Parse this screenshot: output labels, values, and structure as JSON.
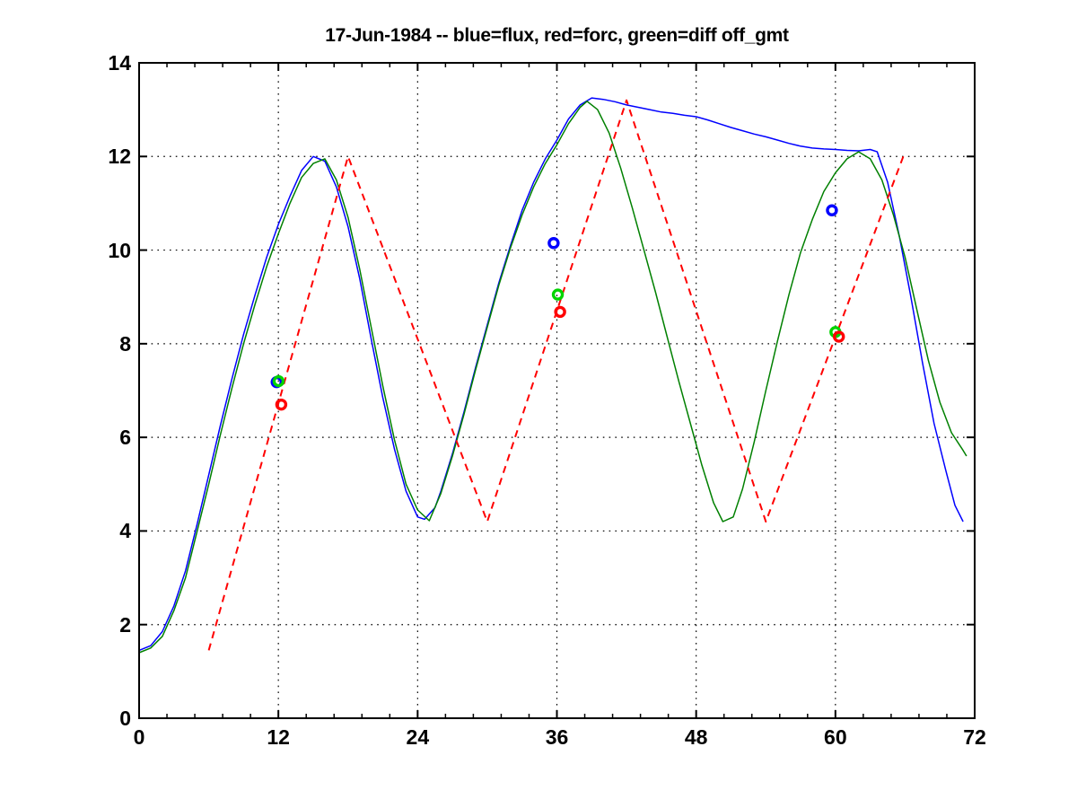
{
  "chart_data": {
    "type": "line",
    "title": "17-Jun-1984 -- blue=flux, red=forc, green=diff off_gmt",
    "xlabel": "",
    "ylabel": "",
    "xlim": [
      0,
      72
    ],
    "ylim": [
      0,
      14
    ],
    "x_ticks": [
      0,
      12,
      24,
      36,
      48,
      60,
      72
    ],
    "y_ticks": [
      0,
      2,
      4,
      6,
      8,
      10,
      12,
      14
    ],
    "x_minor_step": 2.4,
    "grid": "dotted",
    "grid_color": "#000000",
    "background": "#ffffff",
    "legend_note": "legend encoded in title: blue=flux, red=forc, green=diff",
    "series": [
      {
        "name": "flux",
        "color": "#0000ff",
        "style": "solid",
        "width": 1.5,
        "points": [
          [
            0,
            1.45
          ],
          [
            1,
            1.55
          ],
          [
            2,
            1.85
          ],
          [
            3,
            2.4
          ],
          [
            4,
            3.15
          ],
          [
            5,
            4.15
          ],
          [
            6,
            5.2
          ],
          [
            7,
            6.25
          ],
          [
            8,
            7.25
          ],
          [
            9,
            8.2
          ],
          [
            10,
            9.05
          ],
          [
            11,
            9.85
          ],
          [
            12,
            10.55
          ],
          [
            13,
            11.15
          ],
          [
            14,
            11.7
          ],
          [
            15,
            12.0
          ],
          [
            16,
            11.9
          ],
          [
            17,
            11.35
          ],
          [
            18,
            10.5
          ],
          [
            19,
            9.4
          ],
          [
            20,
            8.1
          ],
          [
            21,
            6.85
          ],
          [
            22,
            5.75
          ],
          [
            23,
            4.85
          ],
          [
            24,
            4.3
          ],
          [
            24.6,
            4.25
          ],
          [
            25.5,
            4.5
          ],
          [
            26,
            4.85
          ],
          [
            27,
            5.65
          ],
          [
            28,
            6.55
          ],
          [
            29,
            7.5
          ],
          [
            30,
            8.4
          ],
          [
            31,
            9.3
          ],
          [
            32,
            10.1
          ],
          [
            33,
            10.85
          ],
          [
            34,
            11.45
          ],
          [
            35,
            11.95
          ],
          [
            36,
            12.35
          ],
          [
            37,
            12.8
          ],
          [
            38,
            13.1
          ],
          [
            39,
            13.25
          ],
          [
            40,
            13.22
          ],
          [
            41,
            13.17
          ],
          [
            42,
            13.1
          ],
          [
            43,
            13.05
          ],
          [
            44,
            13.0
          ],
          [
            45,
            12.95
          ],
          [
            46,
            12.92
          ],
          [
            47,
            12.88
          ],
          [
            48,
            12.85
          ],
          [
            49,
            12.78
          ],
          [
            50,
            12.7
          ],
          [
            51,
            12.62
          ],
          [
            52,
            12.55
          ],
          [
            53,
            12.48
          ],
          [
            54,
            12.42
          ],
          [
            55,
            12.35
          ],
          [
            56,
            12.28
          ],
          [
            57,
            12.22
          ],
          [
            58,
            12.18
          ],
          [
            59,
            12.16
          ],
          [
            60,
            12.15
          ],
          [
            61,
            12.13
          ],
          [
            62,
            12.12
          ],
          [
            63,
            12.15
          ],
          [
            63.6,
            12.1
          ],
          [
            64.5,
            11.45
          ],
          [
            65.5,
            10.3
          ],
          [
            66.5,
            9.0
          ],
          [
            67.5,
            7.6
          ],
          [
            68.5,
            6.3
          ],
          [
            69.5,
            5.3
          ],
          [
            70.3,
            4.55
          ],
          [
            71,
            4.2
          ]
        ]
      },
      {
        "name": "diff",
        "color": "#008000",
        "style": "solid",
        "width": 1.5,
        "points": [
          [
            0,
            1.4
          ],
          [
            1,
            1.5
          ],
          [
            2,
            1.75
          ],
          [
            3,
            2.3
          ],
          [
            4,
            3.0
          ],
          [
            5,
            4.0
          ],
          [
            6,
            5.0
          ],
          [
            7,
            6.05
          ],
          [
            8,
            7.05
          ],
          [
            9,
            8.0
          ],
          [
            10,
            8.85
          ],
          [
            11,
            9.65
          ],
          [
            12,
            10.35
          ],
          [
            13,
            11.0
          ],
          [
            14,
            11.55
          ],
          [
            15,
            11.85
          ],
          [
            16,
            11.95
          ],
          [
            17,
            11.5
          ],
          [
            18,
            10.7
          ],
          [
            19,
            9.6
          ],
          [
            20,
            8.35
          ],
          [
            21,
            7.1
          ],
          [
            22,
            5.95
          ],
          [
            23,
            5.0
          ],
          [
            24,
            4.45
          ],
          [
            25,
            4.22
          ],
          [
            26,
            4.8
          ],
          [
            27,
            5.6
          ],
          [
            28,
            6.5
          ],
          [
            29,
            7.45
          ],
          [
            30,
            8.35
          ],
          [
            31,
            9.25
          ],
          [
            32,
            10.05
          ],
          [
            33,
            10.75
          ],
          [
            34,
            11.35
          ],
          [
            35,
            11.85
          ],
          [
            36,
            12.25
          ],
          [
            37,
            12.7
          ],
          [
            38,
            13.05
          ],
          [
            38.6,
            13.18
          ],
          [
            39.5,
            13.0
          ],
          [
            40.5,
            12.5
          ],
          [
            41.5,
            11.75
          ],
          [
            42.5,
            10.9
          ],
          [
            43.5,
            10.0
          ],
          [
            44.5,
            9.1
          ],
          [
            45.5,
            8.15
          ],
          [
            46.5,
            7.2
          ],
          [
            47.5,
            6.3
          ],
          [
            48.5,
            5.4
          ],
          [
            49.5,
            4.6
          ],
          [
            50.3,
            4.2
          ],
          [
            51.2,
            4.3
          ],
          [
            52,
            4.9
          ],
          [
            53,
            5.9
          ],
          [
            54,
            7.0
          ],
          [
            55,
            8.05
          ],
          [
            56,
            9.05
          ],
          [
            57,
            9.95
          ],
          [
            58,
            10.65
          ],
          [
            59,
            11.25
          ],
          [
            60,
            11.65
          ],
          [
            61,
            11.95
          ],
          [
            62,
            12.1
          ],
          [
            63,
            11.95
          ],
          [
            64,
            11.5
          ],
          [
            65,
            10.75
          ],
          [
            66,
            9.85
          ],
          [
            67,
            8.75
          ],
          [
            68,
            7.65
          ],
          [
            69,
            6.75
          ],
          [
            70,
            6.1
          ],
          [
            71,
            5.72
          ],
          [
            71.3,
            5.6
          ]
        ]
      },
      {
        "name": "forc",
        "color": "#ff0000",
        "style": "dashed",
        "width": 2,
        "points": [
          [
            6,
            1.45
          ],
          [
            18,
            12.0
          ],
          [
            30,
            4.2
          ],
          [
            42,
            13.2
          ],
          [
            54,
            4.2
          ],
          [
            66,
            12.1
          ]
        ]
      }
    ],
    "markers": [
      {
        "name": "flux-markers",
        "color": "#0000ff",
        "shape": "circle",
        "points": [
          [
            11.85,
            7.18
          ],
          [
            35.72,
            10.15
          ],
          [
            59.7,
            10.85
          ]
        ]
      },
      {
        "name": "diff-markers",
        "color": "#00d400",
        "shape": "circle",
        "points": [
          [
            12.02,
            7.2
          ],
          [
            36.08,
            9.05
          ],
          [
            60.0,
            8.25
          ]
        ]
      },
      {
        "name": "forc-markers",
        "color": "#ff0000",
        "shape": "circle",
        "points": [
          [
            12.25,
            6.7
          ],
          [
            36.28,
            8.68
          ],
          [
            60.3,
            8.15
          ]
        ]
      }
    ]
  }
}
